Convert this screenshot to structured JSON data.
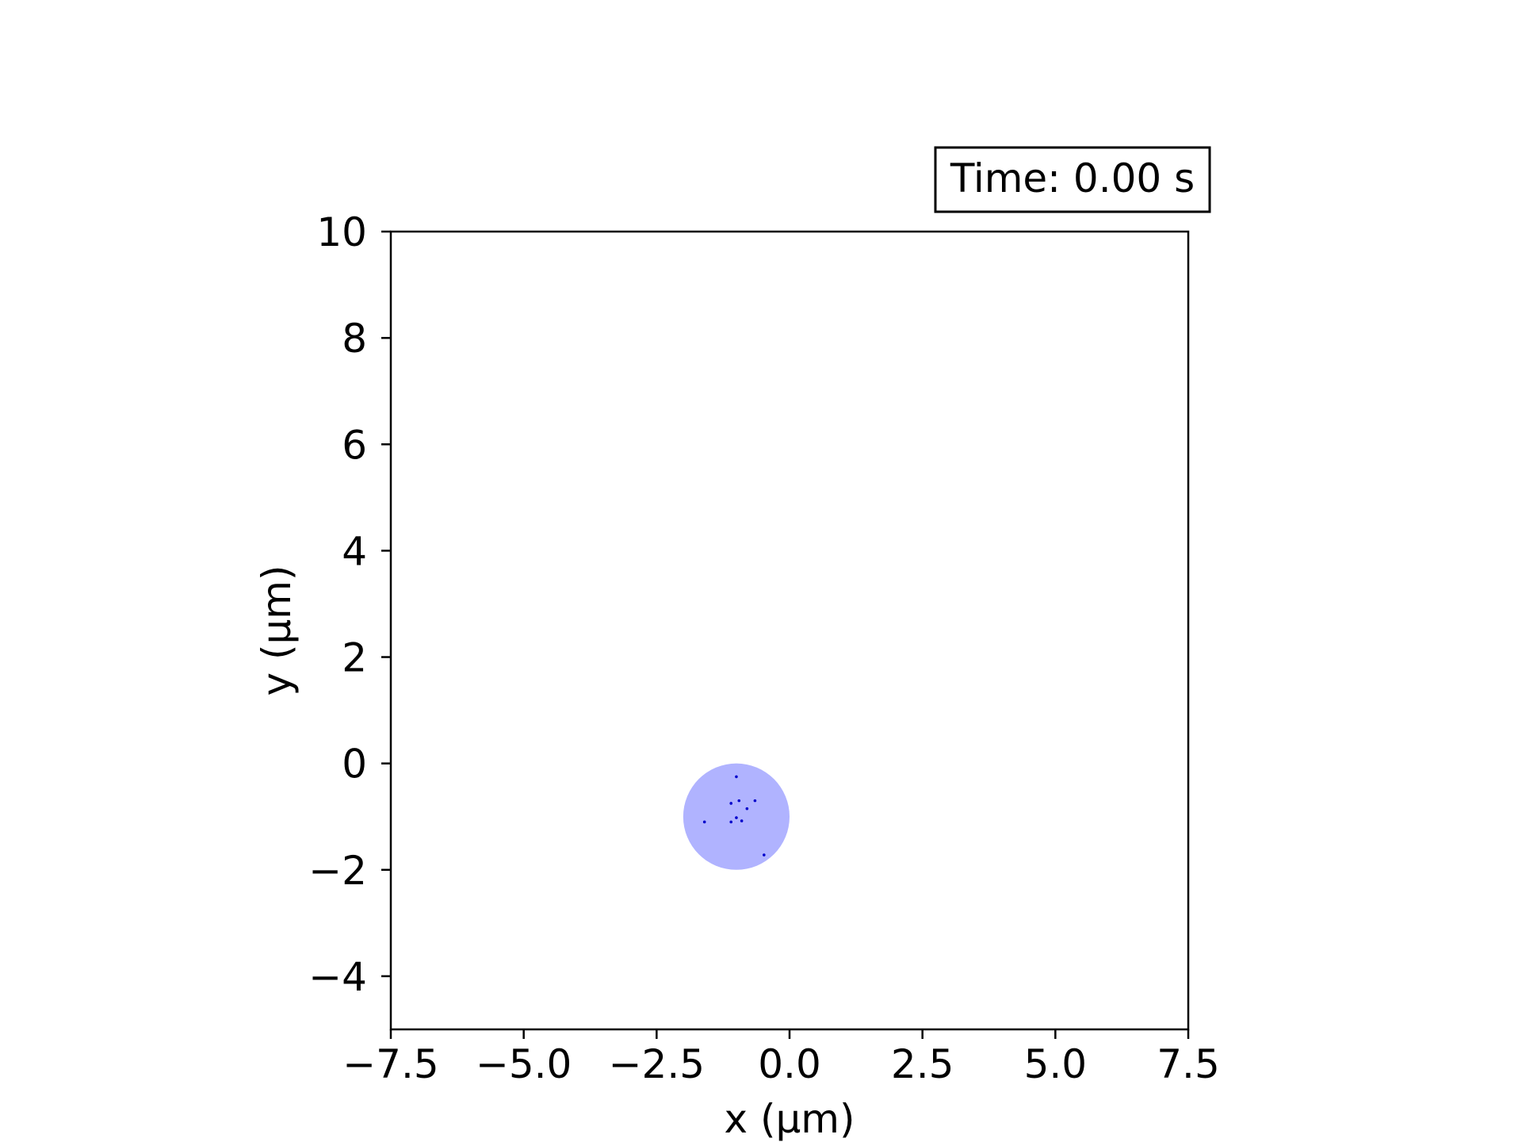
{
  "chart_data": {
    "type": "scatter",
    "title": "",
    "xlabel": "x (μm)",
    "ylabel": "y (μm)",
    "xlim": [
      -7.5,
      7.5
    ],
    "ylim": [
      -5,
      10
    ],
    "grid": false,
    "x_ticks": [
      -7.5,
      -5.0,
      -2.5,
      0.0,
      2.5,
      5.0,
      7.5
    ],
    "x_tick_labels": [
      "−7.5",
      "−5.0",
      "−2.5",
      "0.0",
      "2.5",
      "5.0",
      "7.5"
    ],
    "y_ticks": [
      -4,
      -2,
      0,
      2,
      4,
      6,
      8,
      10
    ],
    "y_tick_labels": [
      "−4",
      "−2",
      "0",
      "2",
      "4",
      "6",
      "8",
      "10"
    ],
    "annotation": "Time: 0.00 s",
    "circle": {
      "center": [
        -1.0,
        -1.0
      ],
      "radius": 1.0,
      "color": "#b0b3ff"
    },
    "point_color": "#0000cc",
    "points": [
      {
        "x": -1.0,
        "y": -0.25
      },
      {
        "x": -0.95,
        "y": -0.7
      },
      {
        "x": -1.1,
        "y": -0.75
      },
      {
        "x": -0.65,
        "y": -0.7
      },
      {
        "x": -0.8,
        "y": -0.85
      },
      {
        "x": -1.0,
        "y": -1.02
      },
      {
        "x": -1.1,
        "y": -1.1
      },
      {
        "x": -0.9,
        "y": -1.08
      },
      {
        "x": -1.6,
        "y": -1.1
      },
      {
        "x": -0.48,
        "y": -1.72
      }
    ]
  }
}
